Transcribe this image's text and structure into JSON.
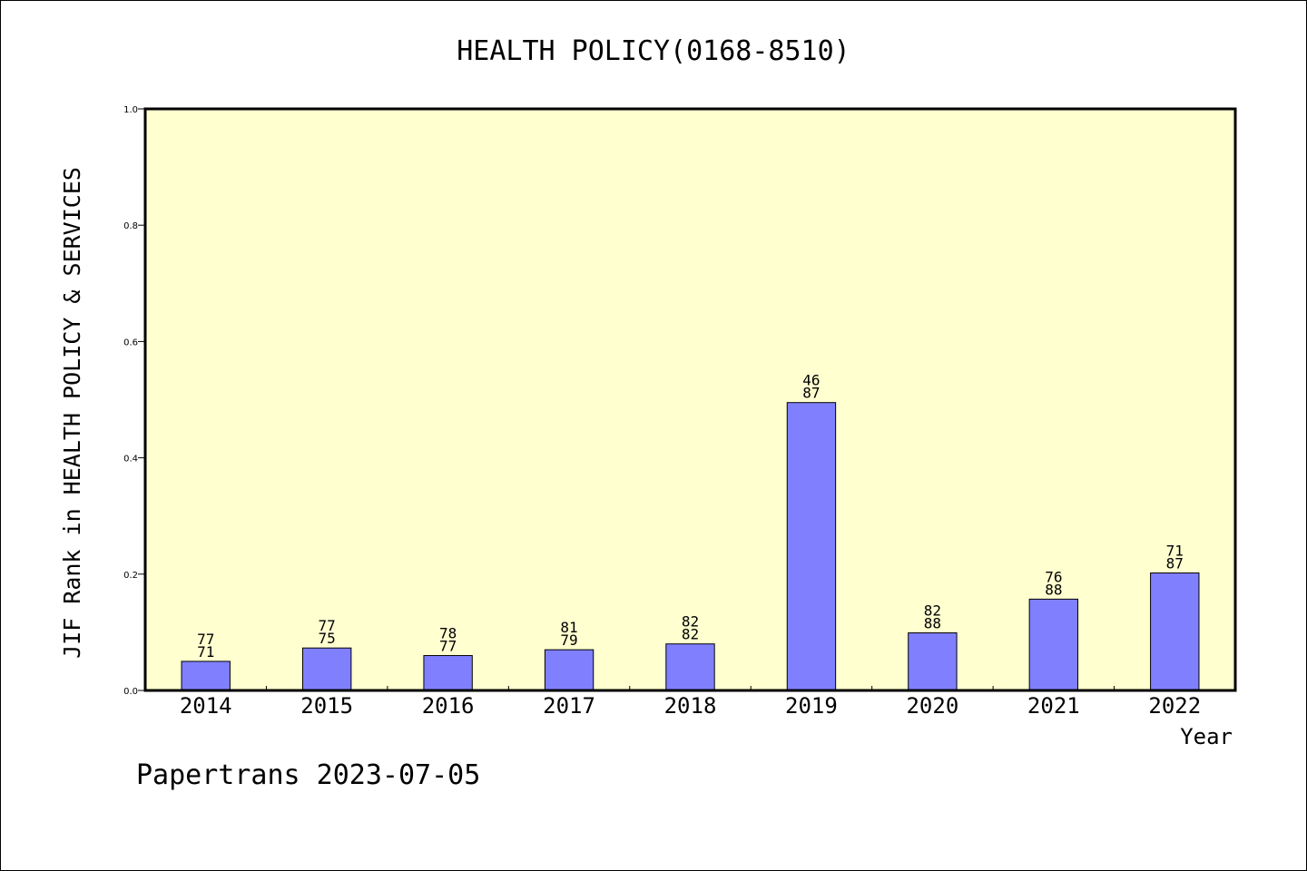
{
  "colors": {
    "plot_background": "#ffffd0",
    "bar_fill": "#8080ff",
    "bar_stroke": "#000000",
    "axis": "#000000"
  },
  "footer": {
    "credit": "Papertrans 2023-07-05"
  },
  "chart_data": {
    "type": "bar",
    "title": "HEALTH POLICY(0168-8510)",
    "xlabel": "Year",
    "ylabel": "JIF Rank in HEALTH POLICY & SERVICES",
    "ylim": [
      0,
      1.0
    ],
    "yticks": [
      "0.0",
      "0.2",
      "0.4",
      "0.6",
      "0.8",
      "1.0"
    ],
    "grid": false,
    "categories": [
      "2014",
      "2015",
      "2016",
      "2017",
      "2018",
      "2019",
      "2020",
      "2021",
      "2022"
    ],
    "values": [
      0.05,
      0.073,
      0.06,
      0.07,
      0.08,
      0.495,
      0.099,
      0.157,
      0.202
    ],
    "labels_top": [
      "77",
      "77",
      "78",
      "81",
      "82",
      "46",
      "82",
      "76",
      "71"
    ],
    "labels_bottom": [
      "71",
      "75",
      "77",
      "79",
      "82",
      "87",
      "88",
      "88",
      "87"
    ]
  }
}
